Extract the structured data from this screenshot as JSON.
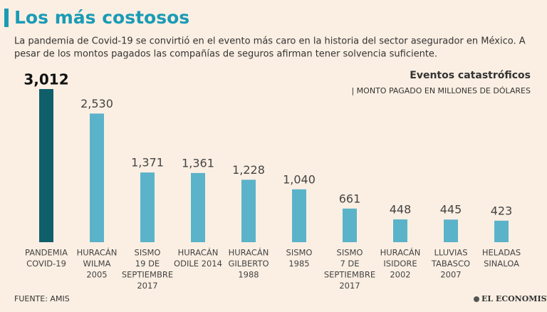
{
  "chart_data": {
    "type": "bar",
    "title": "Los más costosos",
    "subtitle": [
      "La pandemia de Covid-19 se convirtió en el evento más caro en la historia del sector asegurador en México. A",
      "pesar de los montos pagados las compañías de seguros afirman tener solvencia suficiente."
    ],
    "legend_title": "Eventos catastróficos",
    "unit_label": "| MONTO PAGADO EN MILLONES DE DÓLARES",
    "categories": [
      [
        "PANDEMIA",
        "COVID-19"
      ],
      [
        "HURACÁN",
        "WILMA",
        "2005"
      ],
      [
        "SISMO",
        "19 DE",
        "SEPTIEMBRE",
        "2017"
      ],
      [
        "HURACÁN",
        "ODILE 2014"
      ],
      [
        "HURACÁN",
        "GILBERTO",
        "1988"
      ],
      [
        "SISMO",
        "1985"
      ],
      [
        "SISMO",
        "7 DE",
        "SEPTIEMBRE",
        "2017"
      ],
      [
        "HURACÁN",
        "ISIDORE",
        "2002"
      ],
      [
        "LLUVIAS",
        "TABASCO",
        "2007"
      ],
      [
        "HELADAS",
        "SINALOA"
      ]
    ],
    "values": [
      3012,
      2530,
      1371,
      1361,
      1228,
      1040,
      661,
      448,
      445,
      423
    ],
    "value_labels": [
      "3,012",
      "2,530",
      "1,371",
      "1,361",
      "1,228",
      "1,040",
      "661",
      "448",
      "445",
      "423"
    ],
    "colors": [
      "#0f5f6b",
      "#5bb3c9",
      "#5bb3c9",
      "#5bb3c9",
      "#5bb3c9",
      "#5bb3c9",
      "#5bb3c9",
      "#5bb3c9",
      "#5bb3c9",
      "#5bb3c9"
    ],
    "source": "FUENTE: AMIS",
    "brand": "EL ECONOMISTA"
  }
}
